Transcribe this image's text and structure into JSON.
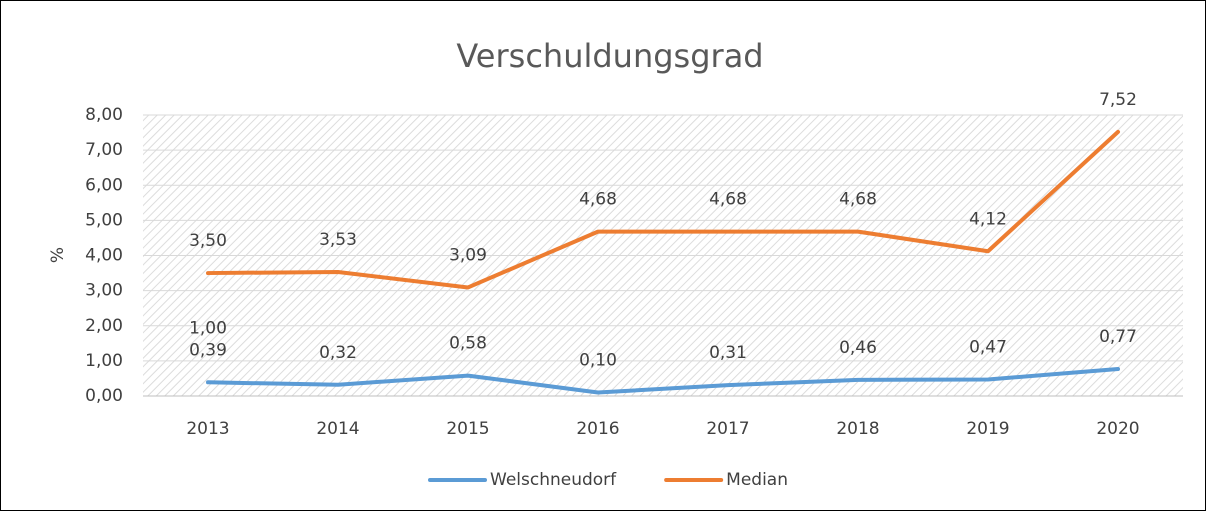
{
  "chart_data": {
    "type": "line",
    "title": "Verschuldungsgrad",
    "y_label": "%",
    "categories": [
      "2013",
      "2014",
      "2015",
      "2016",
      "2017",
      "2018",
      "2019",
      "2020"
    ],
    "series": [
      {
        "name": "Welschneudorf",
        "color": "#5b9bd5",
        "values": [
          0.39,
          0.32,
          0.58,
          0.1,
          0.31,
          0.46,
          0.47,
          0.77
        ],
        "value_labels": [
          "0,39",
          "0,32",
          "0,58",
          "0,10",
          "0,31",
          "0,46",
          "0,47",
          "0,77"
        ]
      },
      {
        "name": "Median",
        "color": "#ed7d31",
        "values": [
          3.5,
          3.53,
          3.09,
          4.68,
          4.68,
          4.68,
          4.12,
          7.52
        ],
        "value_labels": [
          "3,50",
          "3,53",
          "3,09",
          "4,68",
          "4,68",
          "4,68",
          "4,12",
          "7,52"
        ]
      }
    ],
    "annotations": [
      "1,00"
    ],
    "ylim": [
      0,
      8
    ],
    "yticks": [
      {
        "value": 0,
        "label": "0,00"
      },
      {
        "value": 1,
        "label": "1,00"
      },
      {
        "value": 2,
        "label": "2,00"
      },
      {
        "value": 3,
        "label": "3,00"
      },
      {
        "value": 4,
        "label": "4,00"
      },
      {
        "value": 5,
        "label": "5,00"
      },
      {
        "value": 6,
        "label": "6,00"
      },
      {
        "value": 7,
        "label": "7,00"
      },
      {
        "value": 8,
        "label": "8,00"
      }
    ],
    "grid": true,
    "legend": "bottom"
  }
}
